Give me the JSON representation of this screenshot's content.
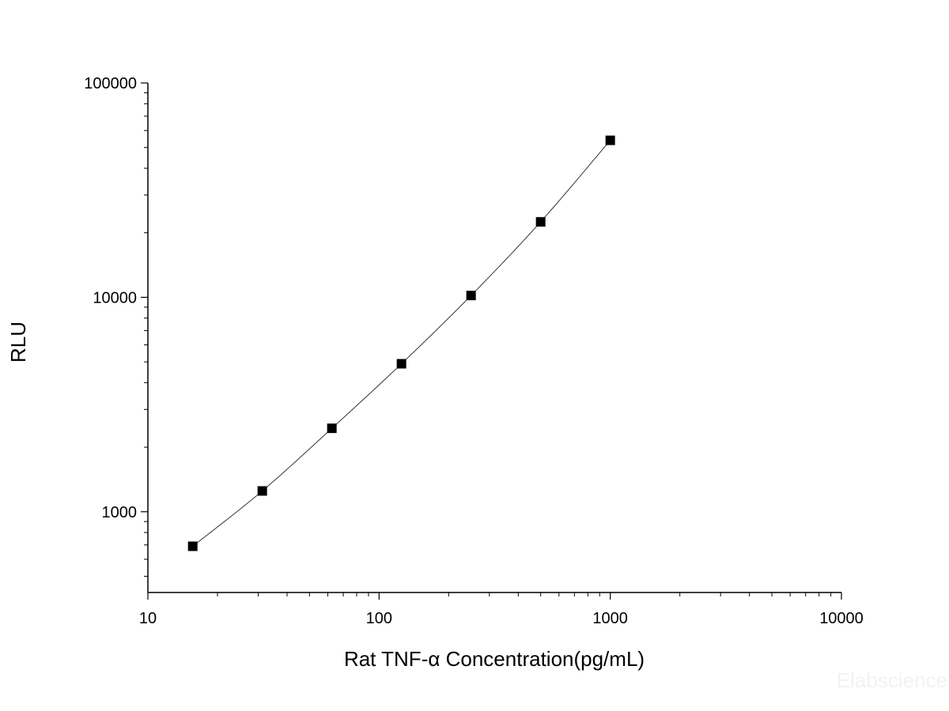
{
  "chart_data": {
    "type": "scatter",
    "xlabel": "Rat TNF-α  Concentration(pg/mL)",
    "ylabel": "RLU",
    "x_scale": "log",
    "y_scale": "log",
    "xlim": [
      10,
      10000
    ],
    "ylim": [
      420,
      100000
    ],
    "x_ticks": [
      "10",
      "100",
      "1000",
      "10000"
    ],
    "y_ticks": [
      "1000",
      "10000",
      "100000"
    ],
    "grid": false,
    "series": [
      {
        "marker": "square",
        "line": "fitted curve",
        "color": "#000000",
        "points": [
          {
            "x": 15.63,
            "y": 690
          },
          {
            "x": 31.25,
            "y": 1250
          },
          {
            "x": 62.5,
            "y": 2450
          },
          {
            "x": 125,
            "y": 4900
          },
          {
            "x": 250,
            "y": 10200
          },
          {
            "x": 500,
            "y": 22500
          },
          {
            "x": 1000,
            "y": 54000
          }
        ]
      }
    ]
  },
  "watermark": "Elabscience"
}
